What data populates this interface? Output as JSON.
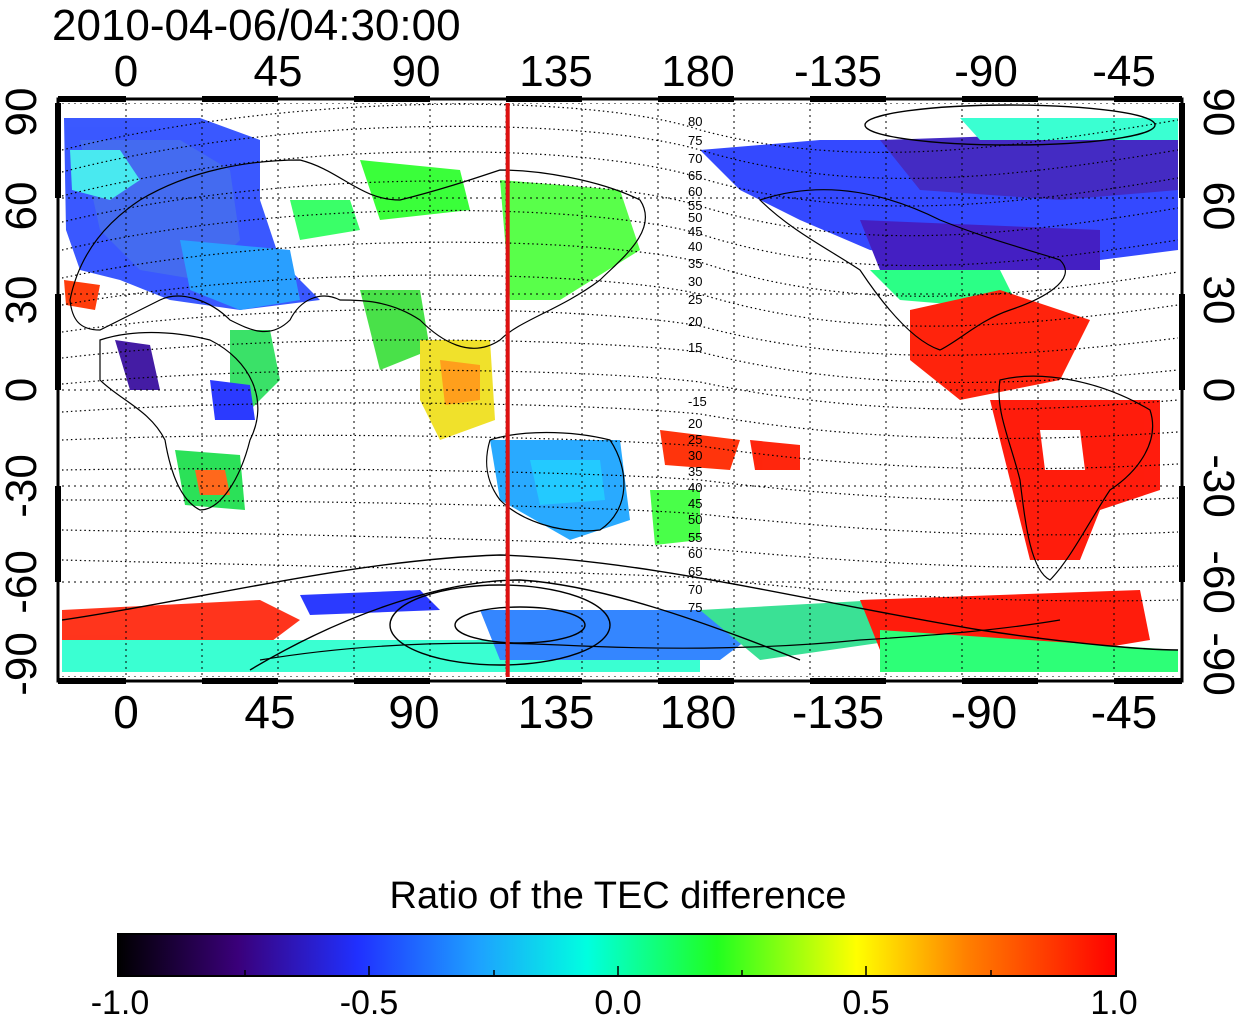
{
  "map": {
    "timestamp": "2010-04-06/04:30:00",
    "top_lon_ticks": [
      "0",
      "45",
      "90",
      "135",
      "180",
      "-135",
      "-90",
      "-45"
    ],
    "bottom_lon_ticks": [
      "0",
      "45",
      "90",
      "135",
      "180",
      "-135",
      "-90",
      "-45"
    ],
    "left_lat_ticks": [
      "90",
      "60",
      "30",
      "0",
      "-30",
      "-60",
      "-90"
    ],
    "right_lat_ticks": [
      "90",
      "60",
      "30",
      "0",
      "-30",
      "-60",
      "-90"
    ],
    "marker_line": {
      "longitude": 113,
      "color": "#dd1111"
    },
    "contour_labels_north": [
      "80",
      "75",
      "70",
      "65",
      "60",
      "55",
      "50",
      "45",
      "40",
      "35",
      "30",
      "25",
      "20",
      "15"
    ],
    "contour_labels_south": [
      "-15",
      "20",
      "25",
      "30",
      "35",
      "40",
      "45",
      "50",
      "55",
      "60",
      "65",
      "70",
      "75"
    ]
  },
  "colorbar": {
    "title": "Ratio of the TEC difference",
    "tick_labels": [
      "-1.0",
      "-0.5",
      "0.0",
      "0.5",
      "1.0"
    ],
    "min": -1.0,
    "max": 1.0
  }
}
